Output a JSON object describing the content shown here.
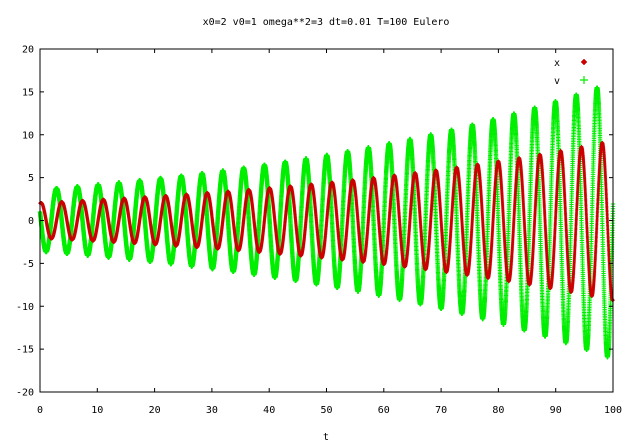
{
  "chart_data": {
    "type": "scatter",
    "title": "x0=2 v0=1 omega**2=3 dt=0.01 T=100 Eulero",
    "xlabel": "t",
    "ylabel": "",
    "xlim": [
      0,
      100
    ],
    "ylim": [
      -20,
      20
    ],
    "grid": false,
    "legend_placement": "top-right",
    "x_ticks": [
      "0",
      "10",
      "20",
      "30",
      "40",
      "50",
      "60",
      "70",
      "80",
      "90",
      "100"
    ],
    "y_ticks": [
      "-20",
      "-15",
      "-10",
      "-5",
      "0",
      "5",
      "10",
      "15",
      "20"
    ],
    "method": {
      "x0": 2,
      "v0": 1,
      "omega2": 3,
      "dt": 0.01,
      "T": 100
    },
    "series": [
      {
        "name": "x",
        "color": "#cc0000",
        "marker": "diamond"
      },
      {
        "name": "v",
        "color": "#00ee00",
        "marker": "plus"
      }
    ]
  }
}
